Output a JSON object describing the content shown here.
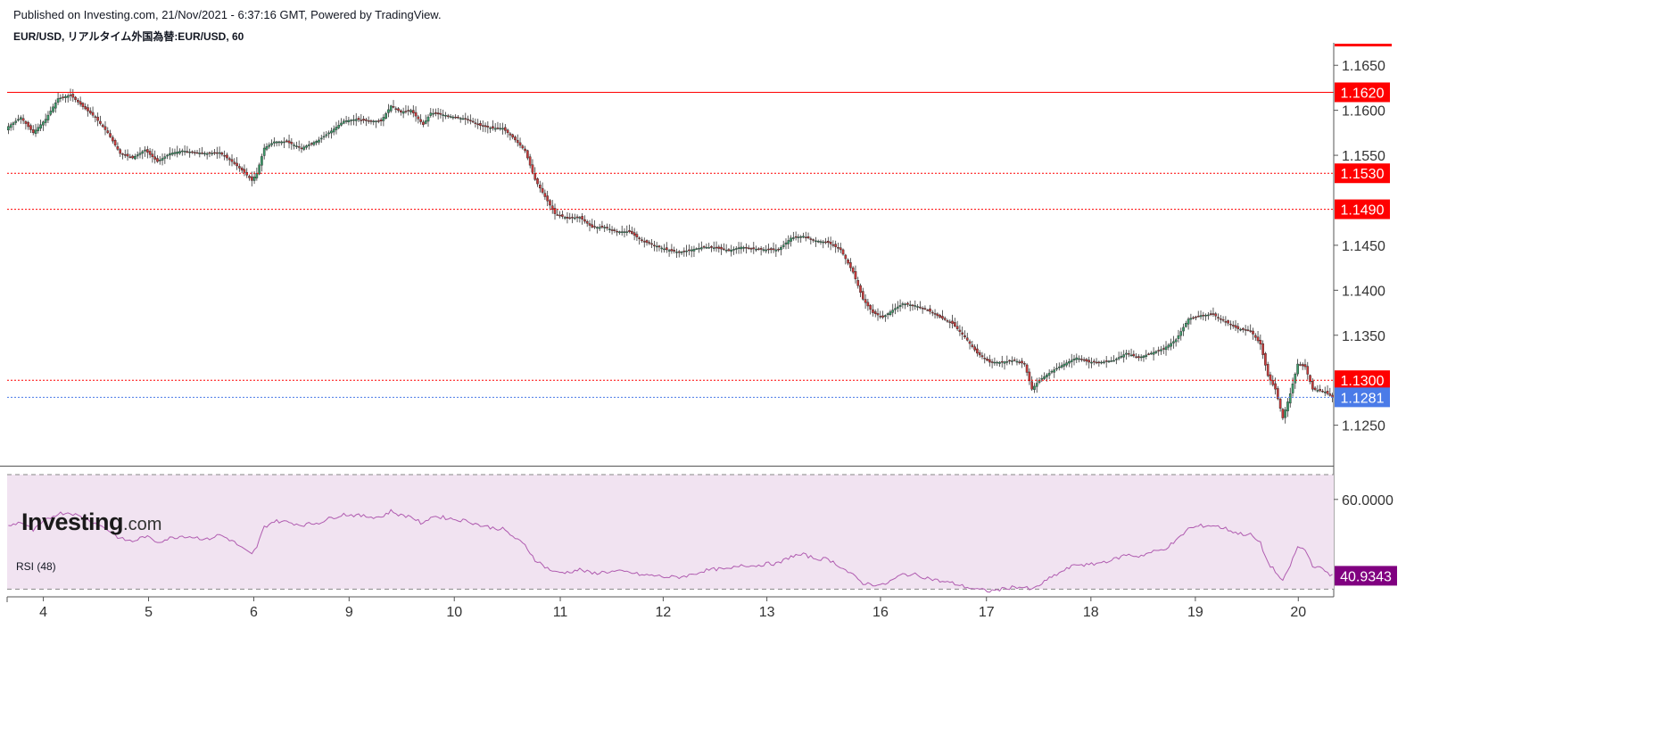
{
  "header": {
    "published": "Published on Investing.com, 21/Nov/2021 - 6:37:16 GMT, Powered by TradingView.",
    "symbol": "EUR/USD, リアルタイム外国為替:EUR/USD, 60"
  },
  "logo": {
    "name": "Investing",
    "suffix": ".com"
  },
  "rsi": {
    "label": "RSI (48)"
  },
  "colors": {
    "up": "#26a69a",
    "down": "#d84a4a",
    "upBody": "#3c9b6a",
    "downBody": "#c93b3b",
    "redLine": "#ff0000",
    "blueLine": "#4a6cf7",
    "rsiLine": "#b05cb0",
    "rsiFill": "#f1e3f1",
    "rsiBadge": "#800080",
    "blueBadge": "#4a7be8",
    "redBadge": "#ff0000"
  },
  "chart_data": [
    {
      "type": "candlestick",
      "title": "EUR/USD, リアルタイム外国為替:EUR/USD, 60",
      "ylim": [
        1.1205,
        1.1675
      ],
      "y_ticks": [
        "1.1650",
        "1.1600",
        "1.1550",
        "1.1450",
        "1.1400",
        "1.1350",
        "1.1250"
      ],
      "x_ticks": [
        "4",
        "5",
        "6",
        "9",
        "10",
        "11",
        "12",
        "13",
        "16",
        "17",
        "18",
        "19",
        "20"
      ],
      "levels": [
        {
          "value": 1.162,
          "label": "1.1620",
          "style": "solid",
          "color": "#ff0000"
        },
        {
          "value": 1.153,
          "label": "1.1530",
          "style": "dotted",
          "color": "#ff0000"
        },
        {
          "value": 1.149,
          "label": "1.1490",
          "style": "dotted",
          "color": "#ff0000"
        },
        {
          "value": 1.13,
          "label": "1.1300",
          "style": "dotted",
          "color": "#ff0000"
        },
        {
          "value": 1.1281,
          "label": "1.1281",
          "style": "dotted",
          "color": "#4a7be8"
        }
      ],
      "price_path": [
        [
          0,
          1.1582
        ],
        [
          5,
          1.1592
        ],
        [
          10,
          1.1575
        ],
        [
          15,
          1.159
        ],
        [
          20,
          1.1613
        ],
        [
          25,
          1.1617
        ],
        [
          30,
          1.1604
        ],
        [
          35,
          1.1592
        ],
        [
          40,
          1.1575
        ],
        [
          45,
          1.1552
        ],
        [
          50,
          1.1547
        ],
        [
          55,
          1.1556
        ],
        [
          60,
          1.1543
        ],
        [
          65,
          1.1552
        ],
        [
          70,
          1.1555
        ],
        [
          75,
          1.1553
        ],
        [
          80,
          1.1552
        ],
        [
          85,
          1.1553
        ],
        [
          90,
          1.1543
        ],
        [
          95,
          1.1531
        ],
        [
          98,
          1.1522
        ],
        [
          100,
          1.153
        ],
        [
          103,
          1.1558
        ],
        [
          107,
          1.1565
        ],
        [
          112,
          1.1565
        ],
        [
          118,
          1.1558
        ],
        [
          125,
          1.1567
        ],
        [
          130,
          1.1577
        ],
        [
          135,
          1.1588
        ],
        [
          140,
          1.159
        ],
        [
          145,
          1.1588
        ],
        [
          150,
          1.1588
        ],
        [
          154,
          1.1605
        ],
        [
          158,
          1.1598
        ],
        [
          162,
          1.16
        ],
        [
          167,
          1.1584
        ],
        [
          170,
          1.1597
        ],
        [
          175,
          1.1595
        ],
        [
          180,
          1.1592
        ],
        [
          185,
          1.159
        ],
        [
          190,
          1.1583
        ],
        [
          195,
          1.158
        ],
        [
          199,
          1.158
        ],
        [
          203,
          1.157
        ],
        [
          208,
          1.1555
        ],
        [
          212,
          1.1523
        ],
        [
          216,
          1.1504
        ],
        [
          220,
          1.1485
        ],
        [
          225,
          1.148
        ],
        [
          230,
          1.1481
        ],
        [
          235,
          1.147
        ],
        [
          240,
          1.147
        ],
        [
          245,
          1.1465
        ],
        [
          250,
          1.1465
        ],
        [
          255,
          1.1455
        ],
        [
          260,
          1.145
        ],
        [
          265,
          1.1445
        ],
        [
          270,
          1.1442
        ],
        [
          275,
          1.1445
        ],
        [
          280,
          1.1448
        ],
        [
          285,
          1.1447
        ],
        [
          290,
          1.1444
        ],
        [
          295,
          1.1448
        ],
        [
          300,
          1.1446
        ],
        [
          305,
          1.1445
        ],
        [
          310,
          1.1445
        ],
        [
          315,
          1.1458
        ],
        [
          320,
          1.146
        ],
        [
          325,
          1.1455
        ],
        [
          330,
          1.1453
        ],
        [
          335,
          1.1445
        ],
        [
          340,
          1.142
        ],
        [
          344,
          1.139
        ],
        [
          348,
          1.1375
        ],
        [
          352,
          1.137
        ],
        [
          356,
          1.1378
        ],
        [
          360,
          1.1385
        ],
        [
          365,
          1.1383
        ],
        [
          370,
          1.1378
        ],
        [
          375,
          1.137
        ],
        [
          380,
          1.1363
        ],
        [
          385,
          1.1348
        ],
        [
          390,
          1.133
        ],
        [
          395,
          1.132
        ],
        [
          400,
          1.132
        ],
        [
          405,
          1.1322
        ],
        [
          409,
          1.1318
        ],
        [
          412,
          1.129
        ],
        [
          415,
          1.13
        ],
        [
          420,
          1.131
        ],
        [
          425,
          1.1318
        ],
        [
          430,
          1.1325
        ],
        [
          435,
          1.132
        ],
        [
          440,
          1.132
        ],
        [
          445,
          1.1322
        ],
        [
          450,
          1.133
        ],
        [
          455,
          1.1325
        ],
        [
          460,
          1.133
        ],
        [
          465,
          1.1335
        ],
        [
          470,
          1.1345
        ],
        [
          475,
          1.1368
        ],
        [
          480,
          1.1372
        ],
        [
          485,
          1.1373
        ],
        [
          490,
          1.1365
        ],
        [
          495,
          1.1357
        ],
        [
          500,
          1.1355
        ],
        [
          504,
          1.134
        ],
        [
          507,
          1.1305
        ],
        [
          510,
          1.129
        ],
        [
          513,
          1.1258
        ],
        [
          516,
          1.1285
        ],
        [
          519,
          1.1318
        ],
        [
          522,
          1.1315
        ],
        [
          525,
          1.129
        ],
        [
          530,
          1.1287
        ],
        [
          533,
          1.1281
        ]
      ]
    },
    {
      "type": "line",
      "title": "RSI (48)",
      "ylim": [
        35.9,
        68.2
      ],
      "y_ticks": [
        "60.0000"
      ],
      "last_value": "40.9343",
      "bands": [
        66.2,
        37.6
      ],
      "rsi_path": [
        [
          0,
          53.3
        ],
        [
          5,
          54.4
        ],
        [
          10,
          52.2
        ],
        [
          15,
          54.8
        ],
        [
          20,
          56.5
        ],
        [
          25,
          56.7
        ],
        [
          30,
          55.4
        ],
        [
          35,
          54.1
        ],
        [
          40,
          52.4
        ],
        [
          45,
          50.2
        ],
        [
          50,
          49.5
        ],
        [
          55,
          50.8
        ],
        [
          60,
          49.4
        ],
        [
          65,
          50.3
        ],
        [
          70,
          50.9
        ],
        [
          75,
          50.6
        ],
        [
          80,
          50.0
        ],
        [
          85,
          51.2
        ],
        [
          90,
          49.7
        ],
        [
          95,
          47.4
        ],
        [
          98,
          46.2
        ],
        [
          100,
          48.2
        ],
        [
          103,
          53.1
        ],
        [
          107,
          54.6
        ],
        [
          112,
          54.4
        ],
        [
          118,
          53.6
        ],
        [
          125,
          54.2
        ],
        [
          130,
          55.4
        ],
        [
          135,
          56.3
        ],
        [
          140,
          56.0
        ],
        [
          145,
          55.7
        ],
        [
          150,
          55.6
        ],
        [
          154,
          57.1
        ],
        [
          158,
          56.0
        ],
        [
          162,
          55.8
        ],
        [
          167,
          53.7
        ],
        [
          170,
          55.8
        ],
        [
          175,
          55.5
        ],
        [
          180,
          55.0
        ],
        [
          185,
          54.6
        ],
        [
          190,
          53.5
        ],
        [
          195,
          52.9
        ],
        [
          199,
          52.6
        ],
        [
          203,
          50.8
        ],
        [
          208,
          48.5
        ],
        [
          212,
          45.0
        ],
        [
          216,
          43.2
        ],
        [
          220,
          41.8
        ],
        [
          225,
          41.8
        ],
        [
          230,
          42.5
        ],
        [
          235,
          41.5
        ],
        [
          240,
          41.9
        ],
        [
          245,
          42.0
        ],
        [
          250,
          41.8
        ],
        [
          255,
          41.1
        ],
        [
          260,
          41.0
        ],
        [
          265,
          40.6
        ],
        [
          270,
          40.6
        ],
        [
          275,
          41.2
        ],
        [
          280,
          42.2
        ],
        [
          285,
          42.6
        ],
        [
          290,
          42.5
        ],
        [
          295,
          43.7
        ],
        [
          300,
          43.4
        ],
        [
          305,
          43.9
        ],
        [
          310,
          44.0
        ],
        [
          315,
          45.8
        ],
        [
          320,
          46.2
        ],
        [
          325,
          45.2
        ],
        [
          330,
          45.1
        ],
        [
          335,
          43.2
        ],
        [
          340,
          41.0
        ],
        [
          344,
          39.1
        ],
        [
          348,
          38.8
        ],
        [
          352,
          38.6
        ],
        [
          356,
          39.9
        ],
        [
          360,
          41.3
        ],
        [
          365,
          41.2
        ],
        [
          370,
          40.4
        ],
        [
          375,
          39.6
        ],
        [
          380,
          39.1
        ],
        [
          385,
          38.2
        ],
        [
          390,
          37.5
        ],
        [
          395,
          37.1
        ],
        [
          400,
          37.6
        ],
        [
          405,
          38.2
        ],
        [
          409,
          38.0
        ],
        [
          412,
          37.4
        ],
        [
          415,
          38.6
        ],
        [
          420,
          40.6
        ],
        [
          425,
          42.3
        ],
        [
          430,
          43.8
        ],
        [
          435,
          43.6
        ],
        [
          440,
          44.3
        ],
        [
          445,
          45.0
        ],
        [
          450,
          46.2
        ],
        [
          455,
          45.8
        ],
        [
          460,
          46.8
        ],
        [
          465,
          47.5
        ],
        [
          470,
          49.6
        ],
        [
          475,
          52.7
        ],
        [
          480,
          53.4
        ],
        [
          485,
          53.5
        ],
        [
          490,
          52.7
        ],
        [
          495,
          51.5
        ],
        [
          500,
          51.2
        ],
        [
          504,
          49.0
        ],
        [
          507,
          44.2
        ],
        [
          510,
          42.0
        ],
        [
          513,
          39.4
        ],
        [
          516,
          43.6
        ],
        [
          519,
          48.1
        ],
        [
          522,
          47.4
        ],
        [
          525,
          43.6
        ],
        [
          530,
          42.2
        ],
        [
          533,
          40.9
        ]
      ]
    }
  ]
}
